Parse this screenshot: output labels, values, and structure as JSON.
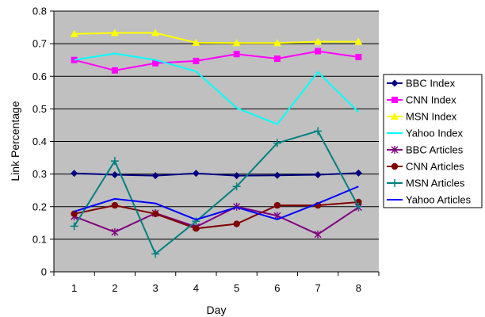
{
  "chart_data": {
    "type": "line",
    "title": "",
    "xlabel": "Day",
    "ylabel": "Link Percentage",
    "x": [
      1,
      2,
      3,
      4,
      5,
      6,
      7,
      8
    ],
    "xticks": [
      "1",
      "2",
      "3",
      "4",
      "5",
      "6",
      "7",
      "8"
    ],
    "ylim": [
      0,
      0.8
    ],
    "yticks": [
      "0",
      "0.1",
      "0.2",
      "0.3",
      "0.4",
      "0.5",
      "0.6",
      "0.7",
      "0.8"
    ],
    "grid": "horizontal",
    "legend_position": "right",
    "plot_background": "#c0c0c0",
    "series": [
      {
        "name": "BBC Index",
        "color": "#000080",
        "marker": "diamond",
        "values": [
          0.302,
          0.298,
          0.295,
          0.302,
          0.295,
          0.296,
          0.298,
          0.303
        ]
      },
      {
        "name": "CNN Index",
        "color": "#ff00ff",
        "marker": "square",
        "values": [
          0.65,
          0.618,
          0.64,
          0.647,
          0.668,
          0.654,
          0.677,
          0.659
        ]
      },
      {
        "name": "MSN Index",
        "color": "#ffff00",
        "marker": "triangle",
        "values": [
          0.73,
          0.733,
          0.733,
          0.703,
          0.702,
          0.702,
          0.706,
          0.706
        ]
      },
      {
        "name": "Yahoo Index",
        "color": "#00ffff",
        "marker": "none",
        "values": [
          0.65,
          0.67,
          0.65,
          0.615,
          0.503,
          0.453,
          0.613,
          0.49
        ]
      },
      {
        "name": "BBC Articles",
        "color": "#800080",
        "marker": "asterisk",
        "values": [
          0.17,
          0.122,
          0.18,
          0.138,
          0.2,
          0.172,
          0.115,
          0.198
        ]
      },
      {
        "name": "CNN Articles",
        "color": "#800000",
        "marker": "circle",
        "values": [
          0.178,
          0.204,
          0.178,
          0.133,
          0.147,
          0.204,
          0.204,
          0.214
        ]
      },
      {
        "name": "MSN Articles",
        "color": "#008080",
        "marker": "plus",
        "values": [
          0.14,
          0.34,
          0.055,
          0.155,
          0.262,
          0.395,
          0.432,
          0.2
        ]
      },
      {
        "name": "Yahoo Articles",
        "color": "#0000ff",
        "marker": "none",
        "values": [
          0.185,
          0.224,
          0.21,
          0.16,
          0.198,
          0.161,
          0.21,
          0.262
        ]
      }
    ]
  }
}
